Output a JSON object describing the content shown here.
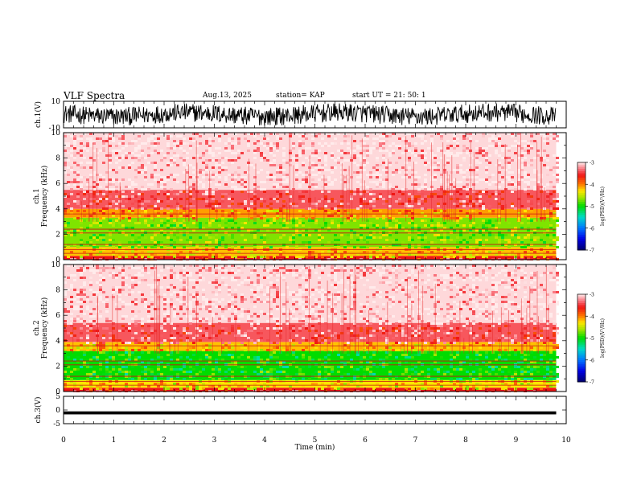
{
  "header": {
    "title": "VLF Spectra",
    "date": "Aug.13, 2025",
    "station": "station= KAP",
    "start": "start  UT  =   21: 50: 1"
  },
  "chart_data": [
    {
      "type": "line",
      "ylabel": "ch.1(V)",
      "ylim": [
        -10,
        10
      ],
      "yticks": [
        "10",
        "-10"
      ],
      "xlim": [
        0,
        10
      ],
      "description": "dense noisy waveform oscillating roughly between -7 and 6 V across 0 to ~9.8 min"
    },
    {
      "type": "heatmap",
      "ylabel": "ch.1\nFrequency (kHz)",
      "ylim": [
        0,
        10
      ],
      "yticks": [
        "0",
        "2",
        "4",
        "6",
        "8",
        "10"
      ],
      "xlim": [
        0,
        10
      ],
      "x_extent": [
        0,
        9.8
      ],
      "bands": [
        {
          "from": 0,
          "to": 0.3,
          "level": -3.6
        },
        {
          "from": 0.3,
          "to": 1.0,
          "level": -4.2
        },
        {
          "from": 1.0,
          "to": 3.3,
          "level": -4.7
        },
        {
          "from": 3.3,
          "to": 4.0,
          "level": -4.1
        },
        {
          "from": 4.0,
          "to": 5.5,
          "level": -3.4
        },
        {
          "from": 5.5,
          "to": 10,
          "level": -3.05
        }
      ],
      "colorbar": {
        "label": "log(PSD)(V²/Hz)",
        "ticks": [
          "-3",
          "-4",
          "-5",
          "-6",
          "-7"
        ],
        "range": [
          -7,
          -3
        ]
      }
    },
    {
      "type": "heatmap",
      "ylabel": "ch.2\nFrequency (kHz)",
      "ylim": [
        0,
        10
      ],
      "yticks": [
        "0",
        "2",
        "4",
        "6",
        "8",
        "10"
      ],
      "xlim": [
        0,
        10
      ],
      "x_extent": [
        0,
        9.8
      ],
      "bands": [
        {
          "from": 0,
          "to": 0.3,
          "level": -3.6
        },
        {
          "from": 0.3,
          "to": 0.9,
          "level": -4.3
        },
        {
          "from": 0.9,
          "to": 3.2,
          "level": -5.0
        },
        {
          "from": 3.2,
          "to": 3.9,
          "level": -4.2
        },
        {
          "from": 3.9,
          "to": 5.4,
          "level": -3.4
        },
        {
          "from": 5.4,
          "to": 10,
          "level": -3.05
        }
      ],
      "colorbar": {
        "label": "log(PSD)(V²/Hz)",
        "ticks": [
          "-3",
          "-4",
          "-5",
          "-6",
          "-7"
        ],
        "range": [
          -7,
          -3
        ]
      }
    },
    {
      "type": "line",
      "ylabel": "ch.3(V)",
      "ylim": [
        -5,
        5
      ],
      "yticks": [
        "5",
        "0",
        "-5"
      ],
      "xlim": [
        0,
        10
      ],
      "xticks": [
        "0",
        "1",
        "2",
        "3",
        "4",
        "5",
        "6",
        "7",
        "8",
        "9",
        "10"
      ],
      "xlabel": "Time (min)",
      "description": "thick near-constant trace around -1 V from 0 to ~9.8 min"
    }
  ],
  "colors": {
    "axes": "#000000",
    "background": "#ffffff"
  }
}
